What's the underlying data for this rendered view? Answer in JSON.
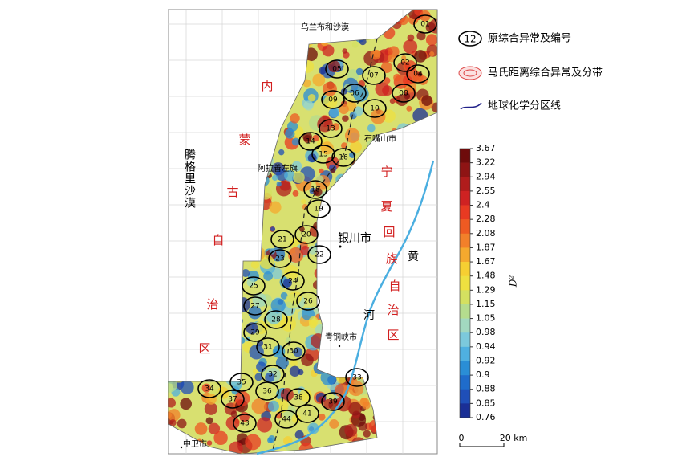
{
  "map": {
    "places": {
      "ulan_buh": "乌兰布和沙漠",
      "tengger": "腾格里沙漠",
      "alxa": "阿拉善左旗",
      "shizuishan": "石嘴山市",
      "yinchuan": "银川市",
      "qingtongxia": "青铜峡市",
      "zhongwei": "中卫市"
    },
    "inner_mongolia_chars": [
      "内",
      "蒙",
      "古",
      "自",
      "治",
      "区"
    ],
    "ningxia_chars": [
      "宁",
      "夏",
      "回",
      "族",
      "自",
      "治",
      "区"
    ],
    "river_chars": [
      "黄",
      "河"
    ],
    "anomalies": [
      "01",
      "02",
      "04",
      "05",
      "06",
      "07",
      "08",
      "09",
      "10",
      "13",
      "14",
      "15",
      "16",
      "18",
      "19",
      "20",
      "21",
      "22",
      "23",
      "24",
      "25",
      "26",
      "27",
      "28",
      "29",
      "30",
      "31",
      "32",
      "33",
      "34",
      "35",
      "36",
      "37",
      "38",
      "39",
      "41",
      "43",
      "44"
    ]
  },
  "legend": {
    "anomaly_symbol": "12",
    "anomaly": "原综合异常及编号",
    "mahalanobis": "马氏距离综合异常及分带",
    "boundary": "地球化学分区线"
  },
  "colorbar": {
    "label": "D²",
    "ticks": [
      3.67,
      3.22,
      2.94,
      2.55,
      2.4,
      2.28,
      2.08,
      1.87,
      1.67,
      1.48,
      1.29,
      1.15,
      1.05,
      0.98,
      0.94,
      0.92,
      0.9,
      0.88,
      0.85,
      0.76
    ],
    "colors": [
      "#6e0b0b",
      "#8e1414",
      "#b01c1c",
      "#cf2222",
      "#e83a22",
      "#ee5a22",
      "#f2802a",
      "#f5a92e",
      "#f6cf32",
      "#eee040",
      "#d4e060",
      "#b5dc8e",
      "#a2d8c0",
      "#7cc9dc",
      "#4fb0e0",
      "#2a8ed6",
      "#1f6ccb",
      "#1f4fb8",
      "#1a2f96"
    ]
  },
  "scale": {
    "start": "0",
    "end": "20 km"
  }
}
